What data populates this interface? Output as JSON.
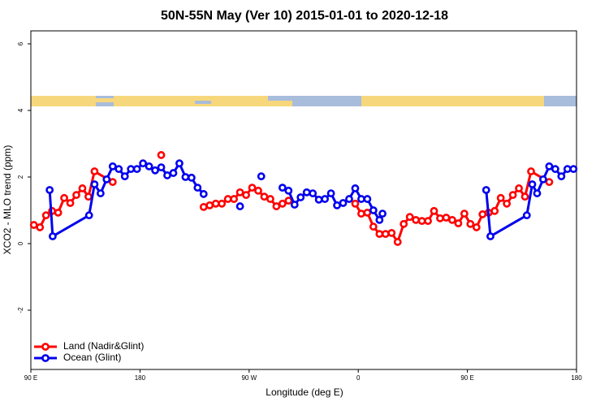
{
  "chart_data": {
    "type": "line",
    "title": "50N-55N May (Ver 10)   2015-01-01 to 2020-12-18",
    "x_label": "Longitude (deg E)",
    "y_label": "XCO2 - MLO trend (ppm)",
    "xlim": [
      90,
      540
    ],
    "xticks": [
      {
        "value": 90,
        "label": "90 E"
      },
      {
        "value": 180,
        "label": "180"
      },
      {
        "value": 270,
        "label": "90 W"
      },
      {
        "value": 360,
        "label": "0"
      },
      {
        "value": 450,
        "label": "90 E"
      },
      {
        "value": 540,
        "label": "180"
      }
    ],
    "ylim": [
      -3.78,
      6.39
    ],
    "yticks": [
      -2,
      0,
      2,
      4,
      6
    ],
    "legend": "lower left",
    "series": [
      {
        "name": "Land (Nadir&Glint)",
        "color": "#ff0000",
        "x": [
          92.5,
          97.5,
          102.5,
          107.5,
          112.5,
          117.5,
          122.5,
          127.5,
          132.5,
          137.5,
          142.5,
          157.5,
          null,
          197.5,
          null,
          232.5,
          237.5,
          242.5,
          247.5,
          252.5,
          257.5,
          262.5,
          267.5,
          272.5,
          277.5,
          282.5,
          287.5,
          292.5,
          297.5,
          302.5,
          null,
          357.5,
          362.5,
          367.5,
          372.5,
          377.5,
          382.5,
          387.5,
          392.5,
          397.5,
          402.5,
          407.5,
          412.5,
          417.5,
          422.5,
          427.5,
          432.5,
          437.5,
          442.5,
          447.5,
          452.5,
          457.5,
          462.5,
          467.5,
          472.5,
          477.5,
          482.5,
          487.5,
          492.5,
          497.5,
          502.5,
          517.5
        ],
        "values": [
          0.56,
          0.49,
          0.85,
          0.98,
          0.93,
          1.37,
          1.22,
          1.46,
          1.66,
          1.41,
          2.17,
          1.85,
          null,
          2.66,
          null,
          1.1,
          1.15,
          1.2,
          1.2,
          1.34,
          1.34,
          1.54,
          1.46,
          1.68,
          1.59,
          1.41,
          1.34,
          1.12,
          1.2,
          1.29,
          null,
          1.2,
          0.9,
          0.93,
          0.51,
          0.29,
          0.29,
          0.32,
          0.05,
          0.59,
          0.8,
          0.71,
          0.68,
          0.68,
          0.98,
          0.76,
          0.78,
          0.71,
          0.61,
          0.9,
          0.59,
          0.49,
          0.88,
          0.93,
          0.98,
          1.37,
          1.2,
          1.46,
          1.66,
          1.41,
          2.17,
          1.85
        ]
      },
      {
        "name": "Ocean (Glint)",
        "color": "#0000ee",
        "x": [
          105.5,
          108,
          138,
          142.5,
          147.5,
          152.5,
          157.5,
          162.5,
          167.5,
          172.5,
          177.5,
          182.5,
          187.5,
          192.5,
          197.5,
          202.5,
          207.5,
          212.5,
          217.5,
          222.5,
          227.5,
          232.5,
          null,
          262.5,
          null,
          280,
          null,
          297.5,
          302.5,
          307.5,
          312.5,
          317.5,
          322.5,
          327.5,
          332.5,
          337.5,
          342.5,
          347.5,
          352.5,
          357.5,
          362.5,
          367.5,
          372.5,
          377.5,
          null,
          380,
          null,
          465.5,
          469,
          499,
          503.5,
          507.5,
          512.5,
          517.5,
          522.5,
          527.5,
          532.5,
          537.5
        ],
        "values": [
          1.61,
          0.22,
          0.85,
          1.78,
          1.51,
          1.93,
          2.32,
          2.24,
          2.02,
          2.24,
          2.24,
          2.41,
          2.32,
          2.2,
          2.29,
          2.05,
          2.12,
          2.41,
          2.0,
          1.98,
          1.68,
          1.49,
          null,
          1.12,
          null,
          2.02,
          null,
          1.68,
          1.59,
          1.17,
          1.39,
          1.54,
          1.51,
          1.32,
          1.34,
          1.51,
          1.15,
          1.22,
          1.34,
          1.66,
          1.34,
          1.34,
          1.0,
          0.71,
          null,
          0.9,
          null,
          1.61,
          0.22,
          0.85,
          1.78,
          1.51,
          1.93,
          2.32,
          2.24,
          2.02,
          2.24,
          2.24
        ]
      }
    ]
  }
}
